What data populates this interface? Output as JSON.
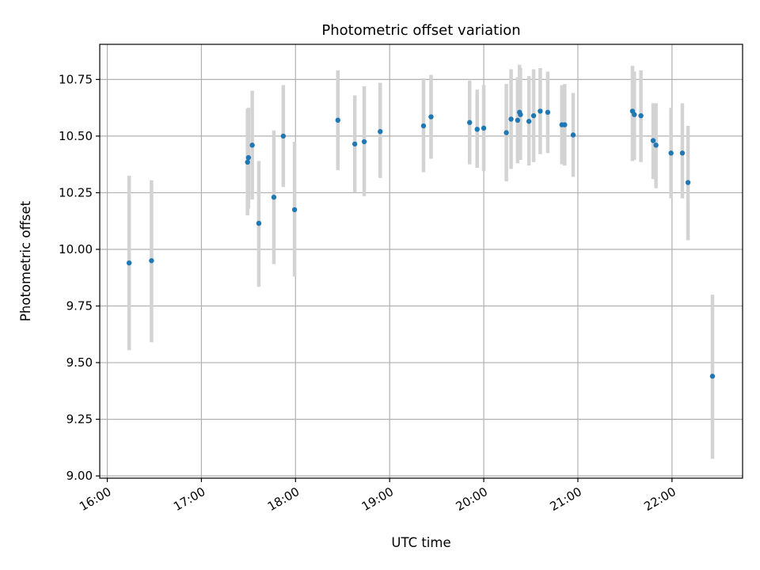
{
  "chart_data": {
    "type": "scatter",
    "title": "Photometric offset variation",
    "xlabel": "UTC time",
    "ylabel": "Photometric offset",
    "xlim_hours": [
      15.92,
      22.75
    ],
    "ylim": [
      8.99,
      10.905
    ],
    "grid": true,
    "x_ticks": [
      {
        "value": 16,
        "label": "16:00"
      },
      {
        "value": 17,
        "label": "17:00"
      },
      {
        "value": 18,
        "label": "18:00"
      },
      {
        "value": 19,
        "label": "19:00"
      },
      {
        "value": 20,
        "label": "20:00"
      },
      {
        "value": 21,
        "label": "21:00"
      },
      {
        "value": 22,
        "label": "22:00"
      }
    ],
    "y_ticks": [
      {
        "value": 9.0,
        "label": "9.00"
      },
      {
        "value": 9.25,
        "label": "9.25"
      },
      {
        "value": 9.5,
        "label": "9.50"
      },
      {
        "value": 9.75,
        "label": "9.75"
      },
      {
        "value": 10.0,
        "label": "10.00"
      },
      {
        "value": 10.25,
        "label": "10.25"
      },
      {
        "value": 10.5,
        "label": "10.50"
      },
      {
        "value": 10.75,
        "label": "10.75"
      }
    ],
    "series": [
      {
        "name": "offset",
        "point_color": "#1f77b4",
        "errorbar_color": "#d3d3d3",
        "points": [
          {
            "x": 16.232,
            "y": 9.94,
            "ylow": 9.555,
            "yhigh": 10.325
          },
          {
            "x": 16.47,
            "y": 9.95,
            "ylow": 9.59,
            "yhigh": 10.305
          },
          {
            "x": 17.49,
            "y": 10.385,
            "ylow": 10.15,
            "yhigh": 10.62
          },
          {
            "x": 17.5,
            "y": 10.405,
            "ylow": 10.18,
            "yhigh": 10.625
          },
          {
            "x": 17.54,
            "y": 10.46,
            "ylow": 10.22,
            "yhigh": 10.7
          },
          {
            "x": 17.61,
            "y": 10.115,
            "ylow": 9.835,
            "yhigh": 10.39
          },
          {
            "x": 17.77,
            "y": 10.23,
            "ylow": 9.935,
            "yhigh": 10.525
          },
          {
            "x": 17.87,
            "y": 10.5,
            "ylow": 10.275,
            "yhigh": 10.725
          },
          {
            "x": 17.99,
            "y": 10.175,
            "ylow": 9.88,
            "yhigh": 10.475
          },
          {
            "x": 18.45,
            "y": 10.57,
            "ylow": 10.35,
            "yhigh": 10.79
          },
          {
            "x": 18.63,
            "y": 10.465,
            "ylow": 10.25,
            "yhigh": 10.68
          },
          {
            "x": 18.73,
            "y": 10.475,
            "ylow": 10.235,
            "yhigh": 10.72
          },
          {
            "x": 18.9,
            "y": 10.52,
            "ylow": 10.315,
            "yhigh": 10.735
          },
          {
            "x": 19.36,
            "y": 10.545,
            "ylow": 10.34,
            "yhigh": 10.755
          },
          {
            "x": 19.44,
            "y": 10.585,
            "ylow": 10.4,
            "yhigh": 10.77
          },
          {
            "x": 19.85,
            "y": 10.56,
            "ylow": 10.375,
            "yhigh": 10.745
          },
          {
            "x": 19.93,
            "y": 10.53,
            "ylow": 10.36,
            "yhigh": 10.705
          },
          {
            "x": 20.0,
            "y": 10.535,
            "ylow": 10.345,
            "yhigh": 10.725
          },
          {
            "x": 20.24,
            "y": 10.515,
            "ylow": 10.3,
            "yhigh": 10.73
          },
          {
            "x": 20.29,
            "y": 10.575,
            "ylow": 10.355,
            "yhigh": 10.795
          },
          {
            "x": 20.36,
            "y": 10.57,
            "ylow": 10.38,
            "yhigh": 10.76
          },
          {
            "x": 20.38,
            "y": 10.605,
            "ylow": 10.395,
            "yhigh": 10.815
          },
          {
            "x": 20.39,
            "y": 10.595,
            "ylow": 10.395,
            "yhigh": 10.8
          },
          {
            "x": 20.48,
            "y": 10.565,
            "ylow": 10.37,
            "yhigh": 10.765
          },
          {
            "x": 20.53,
            "y": 10.59,
            "ylow": 10.385,
            "yhigh": 10.795
          },
          {
            "x": 20.6,
            "y": 10.61,
            "ylow": 10.42,
            "yhigh": 10.8
          },
          {
            "x": 20.68,
            "y": 10.605,
            "ylow": 10.425,
            "yhigh": 10.785
          },
          {
            "x": 20.83,
            "y": 10.55,
            "ylow": 10.375,
            "yhigh": 10.725
          },
          {
            "x": 20.86,
            "y": 10.55,
            "ylow": 10.37,
            "yhigh": 10.73
          },
          {
            "x": 20.95,
            "y": 10.505,
            "ylow": 10.32,
            "yhigh": 10.69
          },
          {
            "x": 21.58,
            "y": 10.61,
            "ylow": 10.39,
            "yhigh": 10.81
          },
          {
            "x": 21.6,
            "y": 10.595,
            "ylow": 10.395,
            "yhigh": 10.785
          },
          {
            "x": 21.67,
            "y": 10.59,
            "ylow": 10.385,
            "yhigh": 10.79
          },
          {
            "x": 21.8,
            "y": 10.48,
            "ylow": 10.31,
            "yhigh": 10.645
          },
          {
            "x": 21.83,
            "y": 10.46,
            "ylow": 10.27,
            "yhigh": 10.645
          },
          {
            "x": 21.99,
            "y": 10.425,
            "ylow": 10.225,
            "yhigh": 10.625
          },
          {
            "x": 22.11,
            "y": 10.425,
            "ylow": 10.225,
            "yhigh": 10.645
          },
          {
            "x": 22.17,
            "y": 10.295,
            "ylow": 10.04,
            "yhigh": 10.545
          },
          {
            "x": 22.43,
            "y": 9.44,
            "ylow": 9.075,
            "yhigh": 9.8
          }
        ]
      }
    ]
  }
}
